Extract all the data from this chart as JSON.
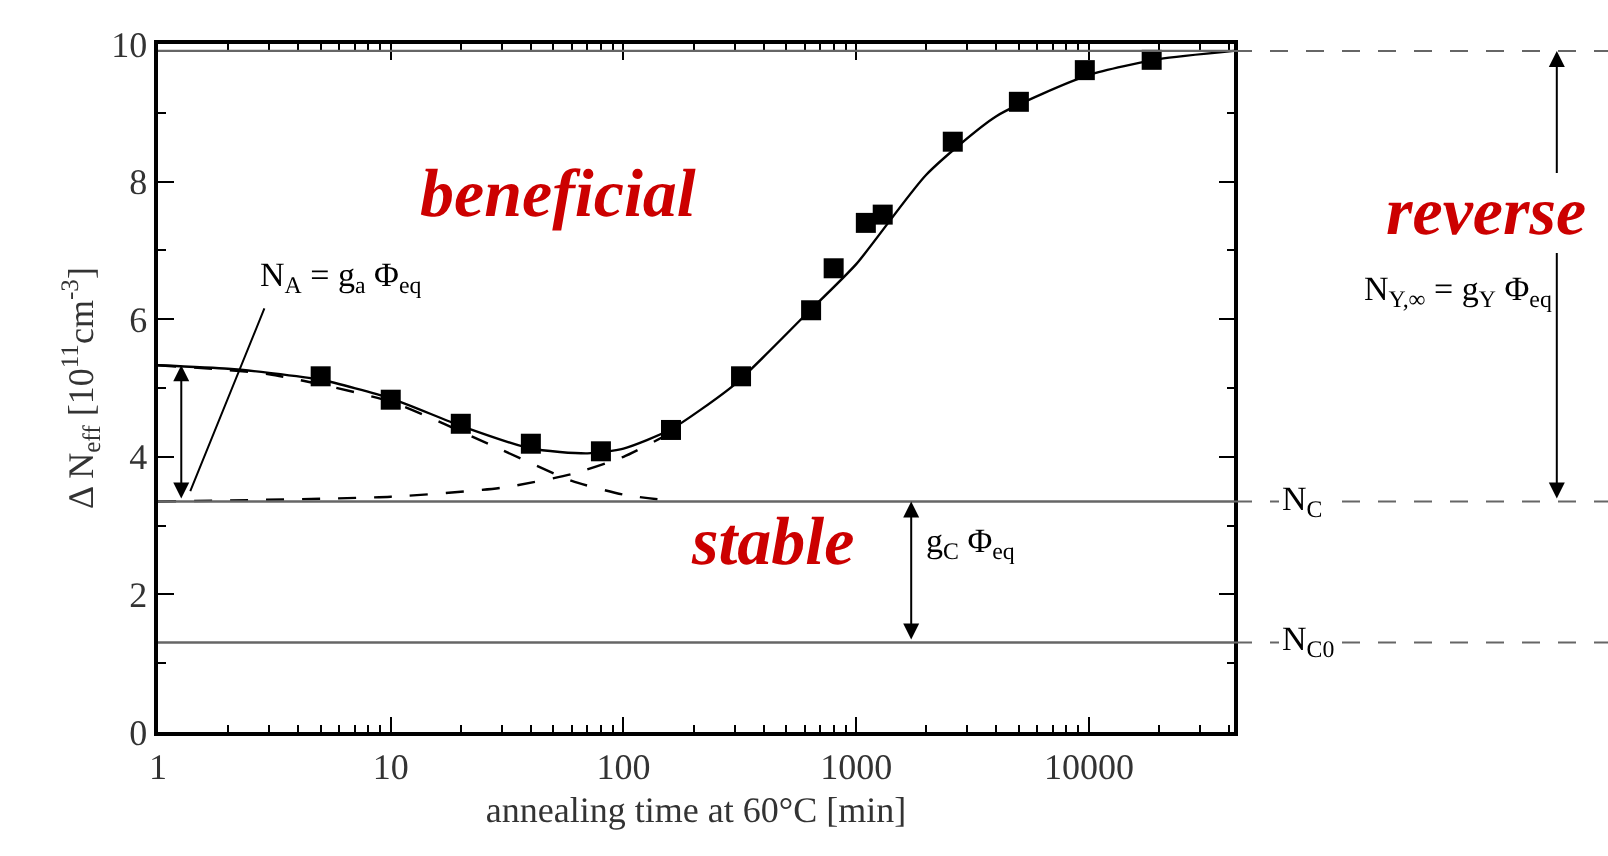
{
  "chart_data": {
    "type": "scatter",
    "xlabel": "annealing time at 60°C [min]",
    "ylabel": "Δ N$_{eff}$ [10$^{11}$cm$^{-3}$]",
    "log": "x",
    "xlim": [
      1,
      42000
    ],
    "xticks": [
      1,
      10,
      100,
      1000,
      10000
    ],
    "ylim": [
      0,
      10
    ],
    "yticks": [
      0,
      2,
      4,
      6,
      8,
      10
    ],
    "legend": false,
    "series": [
      {
        "color": "#000000",
        "marker": "square",
        "x": [
          5,
          10,
          20,
          40,
          80,
          160,
          320,
          640,
          800,
          1100,
          1300,
          2600,
          5000,
          9600,
          18600
        ],
        "values": [
          5.17,
          4.83,
          4.48,
          4.19,
          4.08,
          4.39,
          5.17,
          6.13,
          6.74,
          7.4,
          7.52,
          8.58,
          9.16,
          9.62,
          9.77
        ]
      },
      {
        "type": "line",
        "color": "#000000",
        "line_style": "solid",
        "x": [
          1,
          2,
          3,
          5,
          10,
          20,
          40,
          70,
          100,
          160,
          300,
          600,
          1000,
          2000,
          4000,
          10000,
          20000,
          42000
        ],
        "values": [
          5.33,
          5.28,
          5.22,
          5.12,
          4.85,
          4.45,
          4.12,
          4.05,
          4.12,
          4.4,
          5.05,
          6.05,
          6.8,
          8.1,
          8.95,
          9.55,
          9.78,
          9.9
        ]
      },
      {
        "type": "line",
        "color": "#000000",
        "line_style": "dashed",
        "x": [
          1,
          3,
          10,
          30,
          60,
          100,
          160
        ],
        "values": [
          5.33,
          5.2,
          4.8,
          4.1,
          3.65,
          3.45,
          3.36
        ]
      },
      {
        "type": "line",
        "color": "#000000",
        "line_style": "dashed",
        "x": [
          1,
          10,
          30,
          60,
          100,
          160
        ],
        "values": [
          3.35,
          3.42,
          3.55,
          3.75,
          4.0,
          4.35
        ]
      }
    ],
    "ref_lines": [
      {
        "axis": "y",
        "value": 3.35,
        "label": "N$_{C}$",
        "color": "#666666"
      },
      {
        "axis": "y",
        "value": 1.3,
        "label": "N$_{C0}$",
        "color": "#666666"
      },
      {
        "axis": "y",
        "value": 9.9,
        "label": null,
        "color": "#666666"
      }
    ],
    "annotations": [
      "beneficial",
      "reverse",
      "stable",
      "N$_{A}$ = g$_{a}$ Φ$_{eq}$",
      "N$_{Y,∞}$ = g$_{Y}$ Φ$_{eq}$",
      "g$_{C}$ Φ$_{eq}$"
    ]
  }
}
